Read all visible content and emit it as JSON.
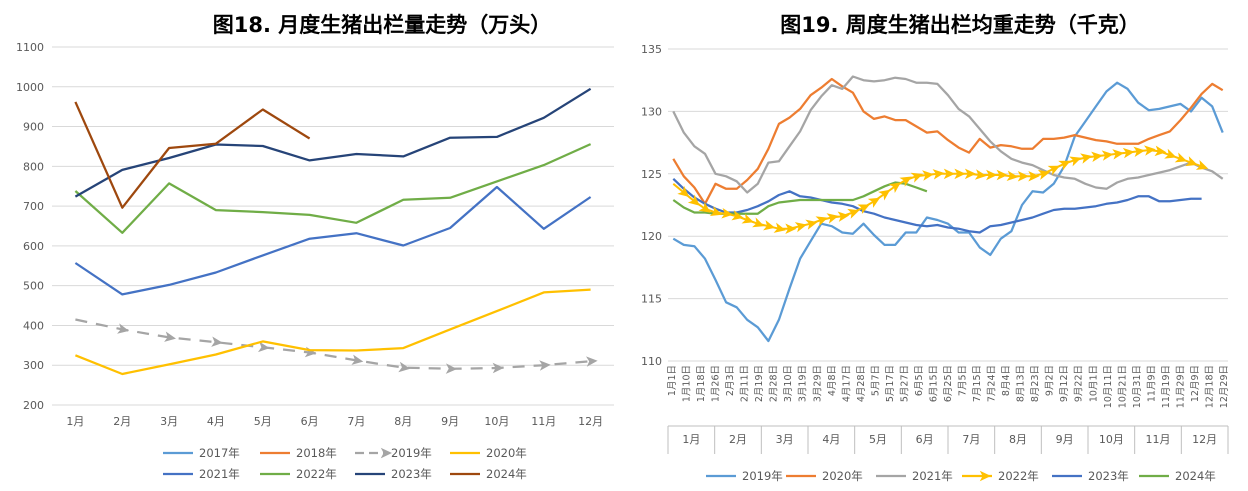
{
  "charts": [
    {
      "id": "left",
      "title": "图18. 月度生猪出栏量走势（万头）",
      "type": "line",
      "ylim": [
        200,
        1100
      ],
      "yticks": [
        "200",
        "300",
        "400",
        "500",
        "600",
        "700",
        "800",
        "900",
        "1000",
        "1100"
      ],
      "categories": [
        "1月",
        "2月",
        "3月",
        "4月",
        "5月",
        "6月",
        "7月",
        "8月",
        "9月",
        "10月",
        "11月",
        "12月"
      ],
      "grid": true,
      "legend_position": "bottom",
      "series": [
        {
          "name": "2017年",
          "color": "#5b9bd5",
          "style": "solid",
          "values": []
        },
        {
          "name": "2018年",
          "color": "#ed7d31",
          "style": "solid",
          "values": []
        },
        {
          "name": "2019年",
          "color": "#a5a5a5",
          "style": "dashed-arrow",
          "values": [
            415,
            390,
            370,
            358,
            345,
            332,
            312,
            294,
            291,
            293,
            300,
            310
          ]
        },
        {
          "name": "2020年",
          "color": "#ffc000",
          "style": "solid",
          "values": [
            325,
            278,
            302,
            327,
            360,
            338,
            337,
            343,
            390,
            436,
            483,
            490
          ]
        },
        {
          "name": "2021年",
          "color": "#4472c4",
          "style": "solid",
          "values": [
            557,
            478,
            502,
            533,
            576,
            618,
            632,
            601,
            645,
            748,
            643,
            723
          ]
        },
        {
          "name": "2022年",
          "color": "#70ad47",
          "style": "solid",
          "values": [
            738,
            633,
            757,
            690,
            685,
            678,
            658,
            716,
            721,
            762,
            803,
            856
          ]
        },
        {
          "name": "2023年",
          "color": "#264478",
          "style": "solid",
          "values": [
            724,
            791,
            821,
            855,
            851,
            815,
            831,
            825,
            872,
            874,
            922,
            995
          ]
        },
        {
          "name": "2024年",
          "color": "#9e480e",
          "style": "solid",
          "values": [
            962,
            696,
            846,
            857,
            943,
            870,
            null,
            null,
            null,
            null,
            null,
            null
          ]
        }
      ]
    },
    {
      "id": "right",
      "title": "图19. 周度生猪出栏均重走势（千克）",
      "type": "line",
      "ylim": [
        110,
        135
      ],
      "yticks": [
        "110",
        "115",
        "120",
        "125",
        "130",
        "135"
      ],
      "week_labels": [
        "1月1日",
        "1月10日",
        "1月18日",
        "1月26日",
        "2月3日",
        "2月11日",
        "2月19日",
        "2月28日",
        "3月10日",
        "3月19日",
        "3月29日",
        "4月8日",
        "4月17日",
        "4月28日",
        "5月7日",
        "5月17日",
        "5月27日",
        "6月5日",
        "6月15日",
        "6月25日",
        "7月5日",
        "7月15日",
        "7月24日",
        "8月4日",
        "8月13日",
        "8月23日",
        "9月2日",
        "9月12日",
        "9月22日",
        "10月1日",
        "10月11日",
        "10月21日",
        "10月31日",
        "11月9日",
        "11月19日",
        "11月29日",
        "12月9日",
        "12月18日",
        "12月29日"
      ],
      "months": [
        "1月",
        "2月",
        "3月",
        "4月",
        "5月",
        "6月",
        "7月",
        "8月",
        "9月",
        "10月",
        "11月",
        "12月"
      ],
      "grid": true,
      "legend_position": "bottom",
      "series": [
        {
          "name": "2019年",
          "color": "#5b9bd5",
          "style": "solid",
          "values": [
            119.8,
            119.3,
            119.2,
            118.2,
            116.5,
            114.7,
            114.3,
            113.3,
            112.7,
            111.6,
            113.3,
            115.8,
            118.2,
            119.6,
            121.0,
            120.8,
            120.3,
            120.2,
            121.0,
            120.1,
            119.3,
            119.3,
            120.3,
            120.3,
            121.5,
            121.3,
            121.0,
            120.3,
            120.3,
            119.1,
            118.5,
            119.8,
            120.4,
            122.5,
            123.6,
            123.5,
            124.2,
            125.6,
            128.0,
            129.2,
            130.4,
            131.6,
            132.3,
            131.8,
            130.7,
            130.1,
            130.2,
            130.4,
            130.6,
            130.0,
            131.1,
            130.4,
            128.3
          ]
        },
        {
          "name": "2020年",
          "color": "#ed7d31",
          "style": "solid",
          "values": [
            126.2,
            124.8,
            123.9,
            122.6,
            124.2,
            123.8,
            123.8,
            124.5,
            125.4,
            127.0,
            129.0,
            129.5,
            130.2,
            131.3,
            131.9,
            132.6,
            132.0,
            131.5,
            130.0,
            129.4,
            129.6,
            129.3,
            129.3,
            128.8,
            128.3,
            128.4,
            127.7,
            127.1,
            126.7,
            127.8,
            127.1,
            127.3,
            127.2,
            127.0,
            127.0,
            127.8,
            127.8,
            127.9,
            128.1,
            127.9,
            127.7,
            127.6,
            127.4,
            127.4,
            127.4,
            127.8,
            128.1,
            128.4,
            129.3,
            130.3,
            131.4,
            132.2,
            131.7
          ]
        },
        {
          "name": "2021年",
          "color": "#a5a5a5",
          "style": "solid",
          "values": [
            130.0,
            128.3,
            127.2,
            126.6,
            125.0,
            124.8,
            124.4,
            123.5,
            124.2,
            125.9,
            126.0,
            127.2,
            128.4,
            130.1,
            131.2,
            132.1,
            131.8,
            132.8,
            132.5,
            132.4,
            132.5,
            132.7,
            132.6,
            132.3,
            132.3,
            132.2,
            131.3,
            130.2,
            129.6,
            128.6,
            127.6,
            126.8,
            126.2,
            125.9,
            125.7,
            125.3,
            124.9,
            124.7,
            124.6,
            124.2,
            123.9,
            123.8,
            124.3,
            124.6,
            124.7,
            124.9,
            125.1,
            125.3,
            125.6,
            125.9,
            125.5,
            125.2,
            124.6
          ]
        },
        {
          "name": "2022年",
          "color": "#ffc000",
          "style": "arrow",
          "values": [
            124.2,
            123.5,
            122.8,
            122.2,
            121.9,
            121.8,
            121.6,
            121.3,
            121.0,
            120.8,
            120.6,
            120.6,
            120.8,
            121.0,
            121.3,
            121.5,
            121.6,
            121.9,
            122.3,
            122.8,
            123.4,
            124.0,
            124.5,
            124.8,
            124.9,
            125.0,
            125.0,
            125.0,
            125.0,
            124.9,
            124.9,
            124.9,
            124.8,
            124.8,
            124.8,
            125.0,
            125.4,
            125.8,
            126.1,
            126.3,
            126.4,
            126.5,
            126.6,
            126.7,
            126.8,
            126.9,
            126.8,
            126.5,
            126.2,
            125.9,
            125.6
          ]
        },
        {
          "name": "2023年",
          "color": "#4472c4",
          "style": "solid",
          "values": [
            124.6,
            123.8,
            123.1,
            122.6,
            122.2,
            121.9,
            121.9,
            122.1,
            122.4,
            122.8,
            123.3,
            123.6,
            123.2,
            123.1,
            122.9,
            122.7,
            122.6,
            122.4,
            122.0,
            121.8,
            121.5,
            121.3,
            121.1,
            120.9,
            120.8,
            120.9,
            120.7,
            120.6,
            120.4,
            120.3,
            120.8,
            120.9,
            121.1,
            121.3,
            121.5,
            121.8,
            122.1,
            122.2,
            122.2,
            122.3,
            122.4,
            122.6,
            122.7,
            122.9,
            123.2,
            123.2,
            122.8,
            122.8,
            122.9,
            123.0,
            123.0
          ]
        },
        {
          "name": "2024年",
          "color": "#70ad47",
          "style": "solid",
          "values": [
            122.9,
            122.3,
            121.9,
            121.9,
            121.8,
            121.8,
            121.8,
            121.8,
            121.8,
            122.4,
            122.7,
            122.8,
            122.9,
            122.9,
            122.9,
            122.9,
            122.9,
            122.9,
            123.2,
            123.6,
            124.0,
            124.3,
            124.2,
            123.9,
            123.6
          ]
        }
      ]
    }
  ]
}
